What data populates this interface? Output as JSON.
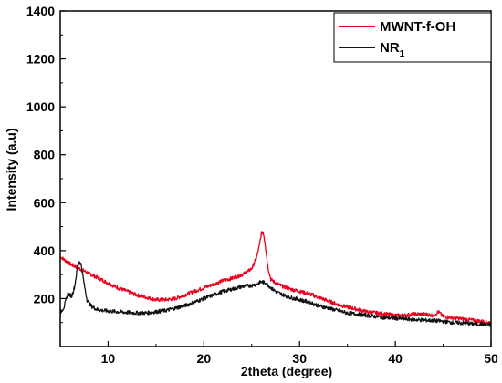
{
  "chart_data": {
    "type": "line",
    "title": "",
    "xlabel": "2theta (degree)",
    "ylabel": "Intensity (a.u)",
    "xlim": [
      5,
      50
    ],
    "ylim": [
      0,
      1400
    ],
    "xticks": [
      10,
      20,
      30,
      40,
      50
    ],
    "yticks": [
      200,
      400,
      600,
      800,
      1000,
      1200,
      1400
    ],
    "legend_position": "top-right",
    "grid": false,
    "series": [
      {
        "name": "MWNT-f-OH",
        "color": "#e8001c",
        "x": [
          5,
          6,
          7,
          8,
          9,
          10,
          11,
          12,
          13,
          14,
          15,
          16,
          17,
          18,
          19,
          20,
          21,
          22,
          23,
          24,
          24.5,
          25,
          25.5,
          25.8,
          26.0,
          26.2,
          26.4,
          26.7,
          27,
          27.5,
          28,
          29,
          30,
          31,
          32,
          33,
          34,
          35,
          36,
          37,
          38,
          39,
          40,
          41,
          42,
          43,
          44,
          44.5,
          45,
          46,
          47,
          48,
          49,
          50
        ],
        "y": [
          375,
          345,
          325,
          305,
          285,
          265,
          245,
          230,
          215,
          205,
          195,
          195,
          200,
          215,
          230,
          245,
          260,
          275,
          285,
          300,
          310,
          325,
          370,
          420,
          470,
          480,
          430,
          330,
          280,
          265,
          255,
          240,
          230,
          220,
          205,
          190,
          175,
          165,
          155,
          145,
          140,
          135,
          130,
          130,
          135,
          135,
          130,
          145,
          125,
          120,
          115,
          110,
          105,
          100
        ]
      },
      {
        "name": "NR",
        "name_subscript": "1",
        "color": "#111111",
        "x": [
          5,
          5.4,
          5.8,
          6.2,
          6.5,
          6.8,
          7.0,
          7.2,
          7.5,
          7.8,
          8.2,
          8.8,
          9.5,
          10,
          11,
          12,
          13,
          14,
          15,
          16,
          17,
          18,
          19,
          20,
          21,
          22,
          23,
          24,
          25,
          25.5,
          26,
          26.5,
          27,
          27.5,
          28,
          29,
          30,
          31,
          32,
          33,
          34,
          35,
          36,
          37,
          38,
          39,
          40,
          41,
          42,
          43,
          44,
          45,
          46,
          47,
          48,
          49,
          50
        ],
        "y": [
          140,
          165,
          220,
          210,
          250,
          330,
          355,
          340,
          260,
          195,
          170,
          155,
          150,
          148,
          145,
          142,
          140,
          140,
          145,
          150,
          160,
          170,
          185,
          200,
          215,
          230,
          240,
          250,
          255,
          260,
          270,
          265,
          245,
          230,
          220,
          205,
          195,
          185,
          170,
          160,
          150,
          140,
          135,
          130,
          125,
          120,
          118,
          115,
          112,
          110,
          108,
          105,
          100,
          98,
          95,
          93,
          90
        ]
      }
    ]
  }
}
